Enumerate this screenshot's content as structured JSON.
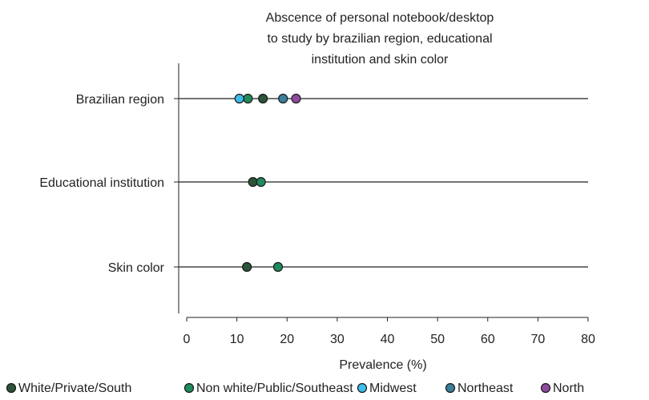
{
  "chart_data": {
    "type": "scatter",
    "title_lines": [
      "Abscence of personal notebook/desktop",
      "to study by brazilian region, educational",
      "institution and skin color"
    ],
    "categories": [
      "Brazilian region",
      "Educational institution",
      "Skin color"
    ],
    "xlabel": "Prevalence (%)",
    "ylabel": "",
    "xlim": [
      0,
      80
    ],
    "xticks": [
      0,
      10,
      20,
      30,
      40,
      50,
      60,
      70,
      80
    ],
    "grid": false,
    "legend_position": "bottom",
    "series": [
      {
        "name": "White/Private/South",
        "color": "#2b5438",
        "values": [
          15.2,
          13.2,
          12.0
        ]
      },
      {
        "name": "Non white/Public/Southeast",
        "color": "#1f8a5b",
        "values": [
          12.2,
          14.8,
          18.2
        ]
      },
      {
        "name": "Midwest",
        "color": "#3dbde8",
        "values": [
          10.5,
          null,
          null
        ]
      },
      {
        "name": "Northeast",
        "color": "#3b7f9a",
        "values": [
          19.2,
          null,
          null
        ]
      },
      {
        "name": "North",
        "color": "#8e4a9e",
        "values": [
          21.8,
          null,
          null
        ]
      }
    ]
  }
}
